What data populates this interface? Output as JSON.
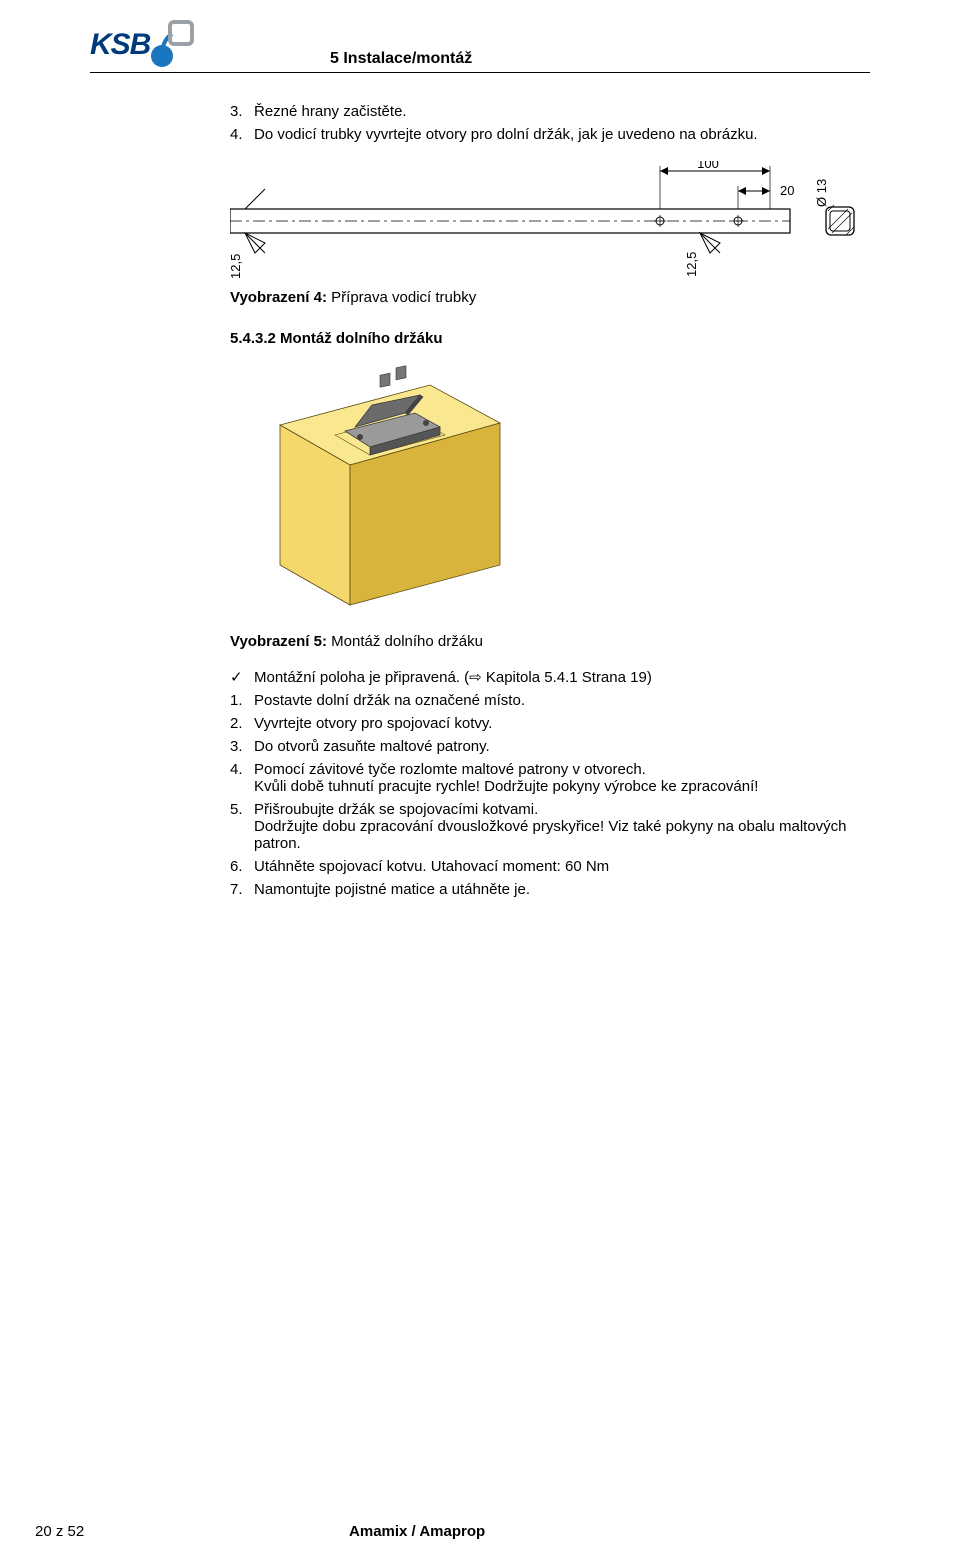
{
  "header": {
    "logo_text": "KSB",
    "section": "5 Instalace/montáž"
  },
  "step3": {
    "num": "3.",
    "text": "Řezné hrany začistěte."
  },
  "step4": {
    "num": "4.",
    "text": "Do vodicí trubky vyvrtejte otvory pro dolní držák, jak je uvedeno na obrázku."
  },
  "fig4": {
    "cap_lead": "Vyobrazení 4:",
    "cap_text": "Příprava vodicí trubky",
    "dims": {
      "d100": "100",
      "d20": "20",
      "d12_5a": "12,5",
      "d12_5b": "12,5",
      "dia13": "Ø  13"
    },
    "colors": {
      "line": "#000000",
      "hatch": "#000000"
    }
  },
  "subsect": "5.4.3.2   Montáž dolního držáku",
  "fig5": {
    "cap_lead": "Vyobrazení 5:",
    "cap_text": "Montáž dolního držáku",
    "colors": {
      "block_front": "#f5d86b",
      "block_top": "#fae891",
      "block_side": "#d9b43d",
      "bracket": "#6b6b6b",
      "bracket_light": "#9a9a9a",
      "bracket_dark": "#3b3b3b",
      "outline": "#5a4a10"
    }
  },
  "prereq": {
    "text": "Montážní poloha je připravená. (⇨ Kapitola 5.4.1 Strana 19)"
  },
  "steps": [
    {
      "num": "1.",
      "text": "Postavte dolní držák na označené místo."
    },
    {
      "num": "2.",
      "text": "Vyvrtejte otvory pro spojovací kotvy."
    },
    {
      "num": "3.",
      "text": "Do otvorů zasuňte maltové patrony."
    },
    {
      "num": "4.",
      "text": "Pomocí závitové tyče rozlomte maltové patrony v otvorech.\nKvůli době tuhnutí pracujte rychle! Dodržujte pokyny výrobce ke zpracování!"
    },
    {
      "num": "5.",
      "text": "Přišroubujte držák se spojovacími kotvami.\nDodržujte dobu zpracování dvousložkové pryskyřice! Viz také pokyny na obalu maltových patron."
    },
    {
      "num": "6.",
      "text": "Utáhněte spojovací kotvu. Utahovací moment: 60 Nm"
    },
    {
      "num": "7.",
      "text": "Namontujte pojistné matice a utáhněte je."
    }
  ],
  "footer": {
    "page": "20 z 52",
    "product": "Amamix / Amaprop"
  }
}
